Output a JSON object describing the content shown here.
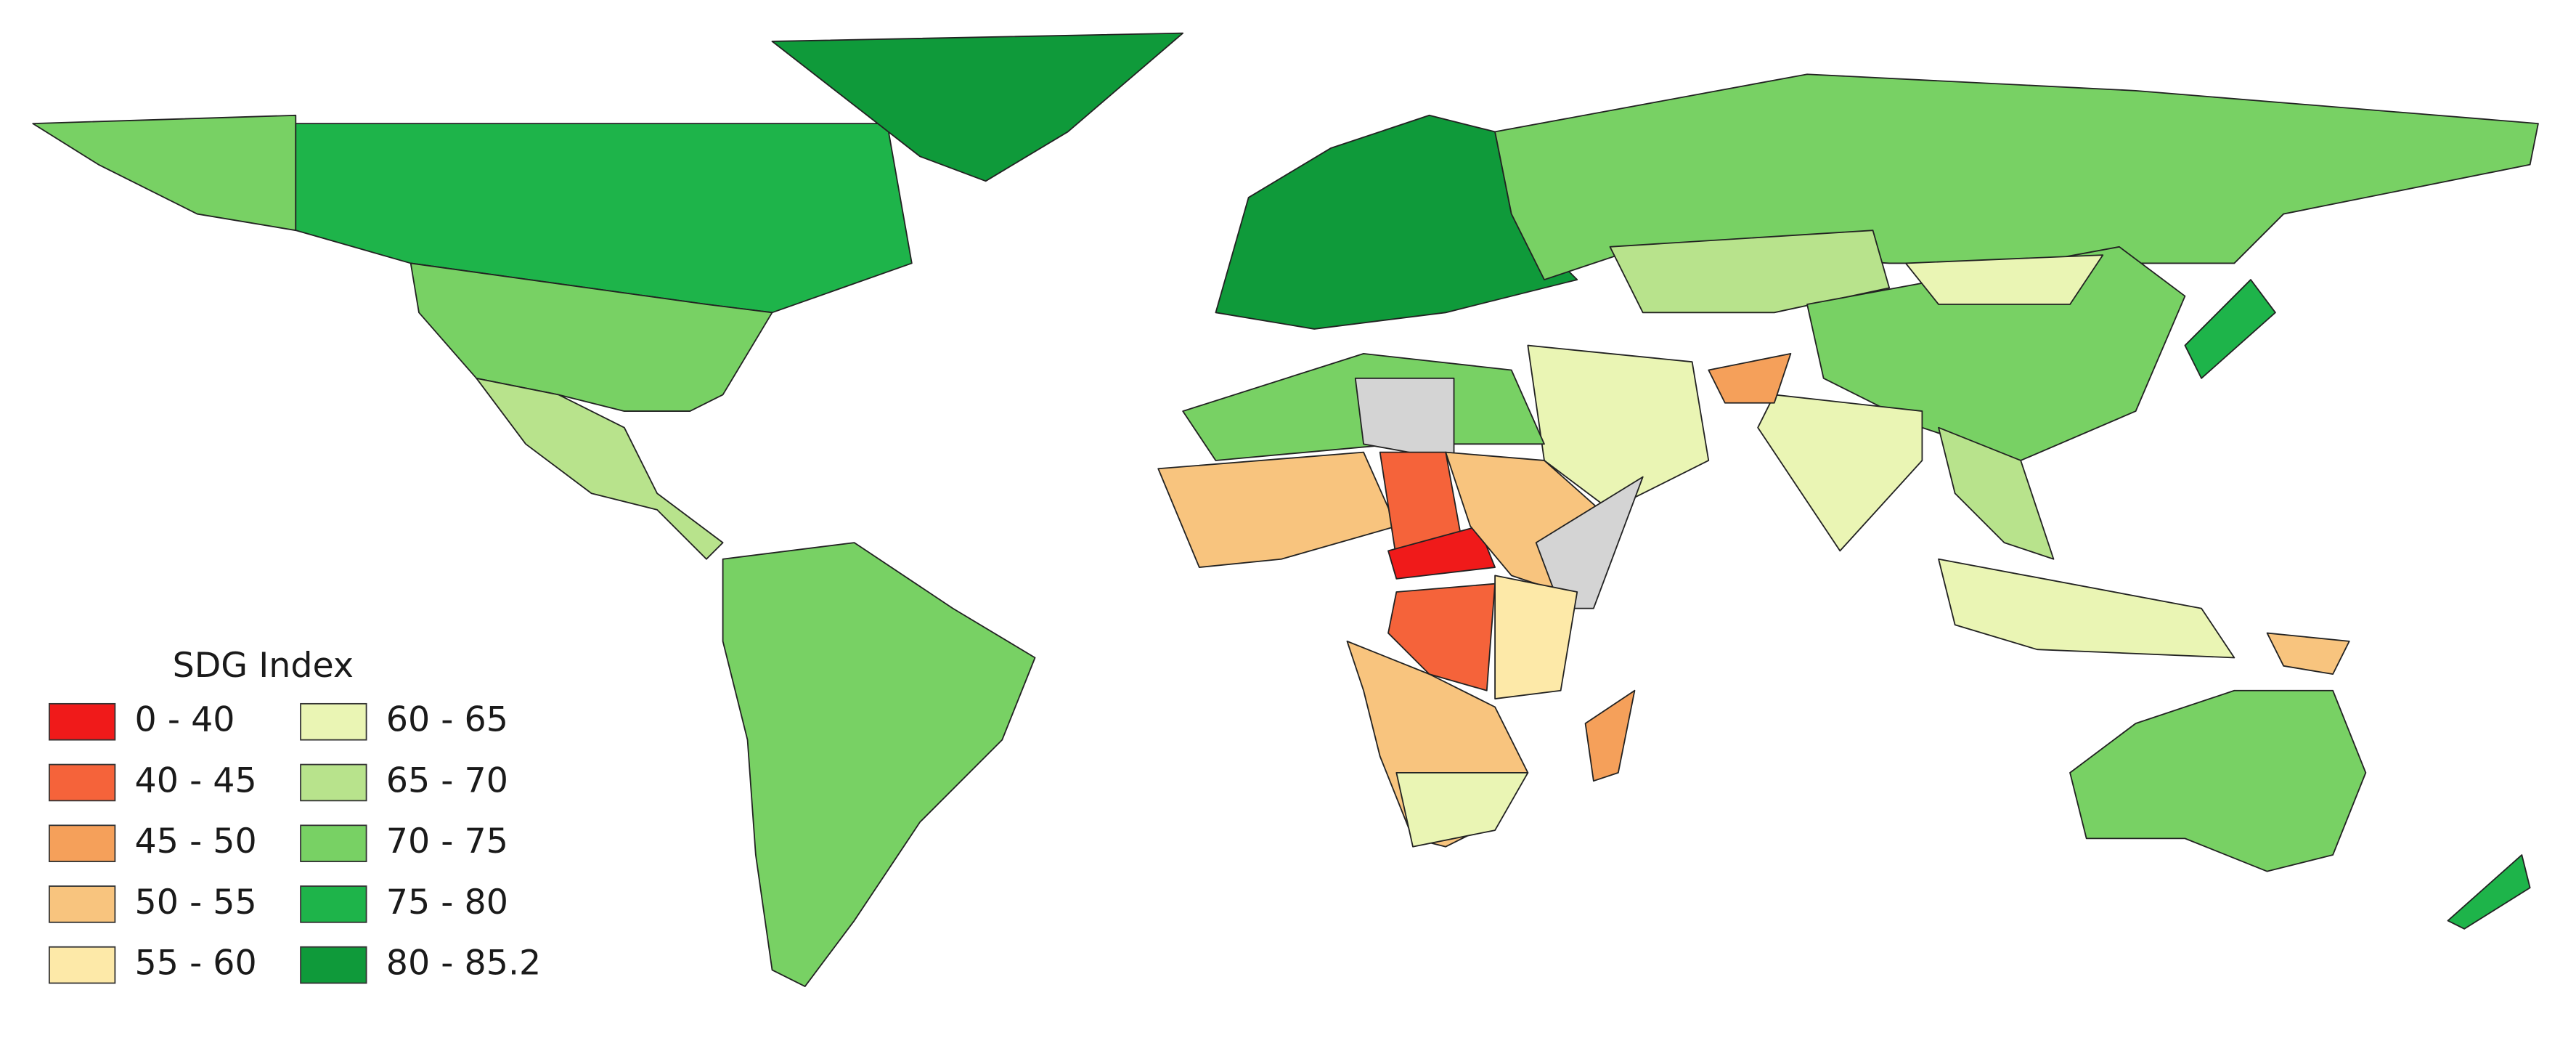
{
  "legend": {
    "title": "SDG Index",
    "items": [
      {
        "label": "0 - 40",
        "color": "#f01a1a"
      },
      {
        "label": "40 - 45",
        "color": "#f5633a"
      },
      {
        "label": "45 - 50",
        "color": "#f5a05a"
      },
      {
        "label": "50 - 55",
        "color": "#f8c47e"
      },
      {
        "label": "55 - 60",
        "color": "#fde9a8"
      },
      {
        "label": "60 - 65",
        "color": "#eaf5b4"
      },
      {
        "label": "65 - 70",
        "color": "#b8e38c"
      },
      {
        "label": "70 - 75",
        "color": "#78d164"
      },
      {
        "label": "75 - 80",
        "color": "#1eb44a"
      },
      {
        "label": "80 - 85.2",
        "color": "#0f9a3a"
      }
    ]
  }
}
